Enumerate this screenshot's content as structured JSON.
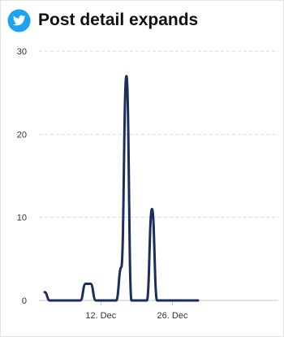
{
  "header": {
    "title": "Post detail expands",
    "icon": "twitter-bird-icon",
    "icon_color": "#1da1f2"
  },
  "chart_data": {
    "type": "line",
    "title": "Post detail expands",
    "xlabel": "",
    "ylabel": "",
    "x_ticks": [
      "12. Dec",
      "26. Dec"
    ],
    "y_ticks": [
      0,
      10,
      20,
      30
    ],
    "ylim": [
      0,
      30
    ],
    "grid": true,
    "legend": "none",
    "line_color": "#1b2f5a",
    "x": [
      "1 Dec",
      "2 Dec",
      "3 Dec",
      "4 Dec",
      "5 Dec",
      "6 Dec",
      "7 Dec",
      "8 Dec",
      "9 Dec",
      "10 Dec",
      "11 Dec",
      "12 Dec",
      "13 Dec",
      "14 Dec",
      "15 Dec",
      "16 Dec",
      "17 Dec",
      "18 Dec",
      "19 Dec",
      "20 Dec",
      "21 Dec",
      "22 Dec",
      "23 Dec",
      "24 Dec",
      "25 Dec",
      "26 Dec",
      "27 Dec",
      "28 Dec",
      "29 Dec",
      "30 Dec",
      "31 Dec"
    ],
    "series": [
      {
        "values": [
          1,
          0,
          0,
          0,
          0,
          0,
          0,
          0,
          2,
          2,
          0,
          0,
          0,
          0,
          0,
          4,
          27,
          0,
          0,
          0,
          0,
          11,
          0,
          0,
          0,
          0,
          0,
          0,
          0,
          0,
          0
        ]
      }
    ]
  }
}
